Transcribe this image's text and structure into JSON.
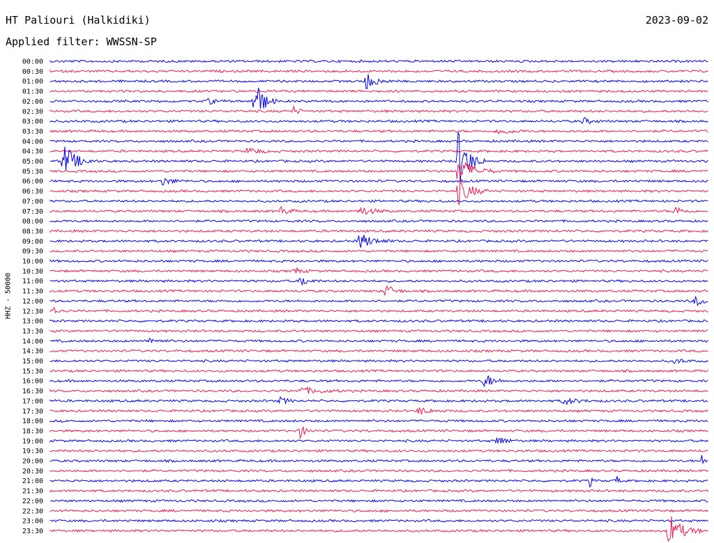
{
  "header": {
    "station": "HT Paliouri (Halkidiki)",
    "filter": "Applied filter: WWSSN-SP",
    "date": "2023-09-02"
  },
  "chart_data": {
    "type": "line",
    "title": "HT Paliouri (Halkidiki)",
    "subtitle": "Applied filter: WWSSN-SP",
    "date": "2023-09-02",
    "ylabel": "HHZ - 50000",
    "rows": [
      "00:00",
      "00:30",
      "01:00",
      "01:30",
      "02:00",
      "02:30",
      "03:00",
      "03:30",
      "04:00",
      "04:30",
      "05:00",
      "05:30",
      "06:00",
      "06:30",
      "07:00",
      "07:30",
      "08:00",
      "08:30",
      "09:00",
      "09:30",
      "10:00",
      "10:30",
      "11:00",
      "11:30",
      "12:00",
      "12:30",
      "13:00",
      "13:30",
      "14:00",
      "14:30",
      "15:00",
      "15:30",
      "16:00",
      "16:30",
      "17:00",
      "17:30",
      "18:00",
      "18:30",
      "19:00",
      "19:30",
      "20:00",
      "20:30",
      "21:00",
      "21:30",
      "22:00",
      "22:30",
      "23:00",
      "23:30"
    ],
    "colors": [
      "#0000ee",
      "#ee1a4b"
    ],
    "events": [
      {
        "row": 2,
        "t": 0.48,
        "amp": 1.2,
        "len": 0.04
      },
      {
        "row": 4,
        "t": 0.31,
        "amp": 3.5,
        "len": 0.035
      },
      {
        "row": 4,
        "t": 0.24,
        "amp": 0.4,
        "len": 0.03
      },
      {
        "row": 5,
        "t": 0.37,
        "amp": 0.6,
        "len": 0.02
      },
      {
        "row": 6,
        "t": 0.81,
        "amp": 0.5,
        "len": 0.03
      },
      {
        "row": 7,
        "t": 0.68,
        "amp": 0.5,
        "len": 0.05
      },
      {
        "row": 9,
        "t": 0.3,
        "amp": 0.5,
        "len": 0.05
      },
      {
        "row": 10,
        "t": 0.02,
        "amp": 2.5,
        "len": 0.05
      },
      {
        "row": 10,
        "t": 0.62,
        "amp": 4.5,
        "len": 0.04
      },
      {
        "row": 11,
        "t": 0.62,
        "amp": 2.0,
        "len": 0.06
      },
      {
        "row": 12,
        "t": 0.17,
        "amp": 0.6,
        "len": 0.04
      },
      {
        "row": 13,
        "t": 0.62,
        "amp": 2.0,
        "len": 0.05
      },
      {
        "row": 15,
        "t": 0.35,
        "amp": 0.7,
        "len": 0.03
      },
      {
        "row": 15,
        "t": 0.47,
        "amp": 0.7,
        "len": 0.05
      },
      {
        "row": 15,
        "t": 0.95,
        "amp": 0.7,
        "len": 0.03
      },
      {
        "row": 18,
        "t": 0.47,
        "amp": 1.2,
        "len": 0.05
      },
      {
        "row": 21,
        "t": 0.37,
        "amp": 0.5,
        "len": 0.03
      },
      {
        "row": 22,
        "t": 0.38,
        "amp": 0.8,
        "len": 0.03
      },
      {
        "row": 23,
        "t": 0.51,
        "amp": 1.0,
        "len": 0.03
      },
      {
        "row": 24,
        "t": 0.98,
        "amp": 0.8,
        "len": 0.03
      },
      {
        "row": 25,
        "t": 0.0,
        "amp": 1.2,
        "len": 0.02
      },
      {
        "row": 28,
        "t": 0.15,
        "amp": 0.5,
        "len": 0.03
      },
      {
        "row": 30,
        "t": 0.95,
        "amp": 0.4,
        "len": 0.03
      },
      {
        "row": 32,
        "t": 0.66,
        "amp": 1.2,
        "len": 0.03
      },
      {
        "row": 33,
        "t": 0.38,
        "amp": 0.5,
        "len": 0.08
      },
      {
        "row": 34,
        "t": 0.35,
        "amp": 0.5,
        "len": 0.03
      },
      {
        "row": 34,
        "t": 0.78,
        "amp": 0.5,
        "len": 0.05
      },
      {
        "row": 35,
        "t": 0.56,
        "amp": 0.5,
        "len": 0.05
      },
      {
        "row": 37,
        "t": 0.38,
        "amp": 1.0,
        "len": 0.02
      },
      {
        "row": 38,
        "t": 0.68,
        "amp": 0.8,
        "len": 0.03
      },
      {
        "row": 40,
        "t": 0.99,
        "amp": 0.8,
        "len": 0.01
      },
      {
        "row": 42,
        "t": 0.82,
        "amp": 0.8,
        "len": 0.01
      },
      {
        "row": 42,
        "t": 0.86,
        "amp": 0.8,
        "len": 0.01
      },
      {
        "row": 47,
        "t": 0.94,
        "amp": 2.5,
        "len": 0.05
      }
    ]
  }
}
